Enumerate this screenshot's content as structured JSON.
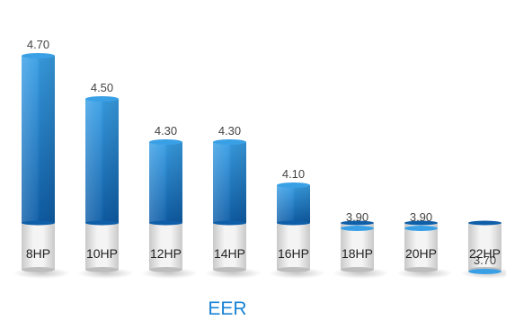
{
  "chart_data": {
    "type": "bar",
    "title": "EER",
    "categories": [
      "8HP",
      "10HP",
      "12HP",
      "14HP",
      "16HP",
      "18HP",
      "20HP",
      "22HP"
    ],
    "values": [
      4.7,
      4.5,
      4.3,
      4.3,
      4.1,
      3.9,
      3.9,
      3.7
    ],
    "value_labels": [
      "4.70",
      "4.50",
      "4.30",
      "4.30",
      "4.10",
      "3.90",
      "3.90",
      "3.70"
    ],
    "xlabel": "",
    "ylabel": "",
    "grid": false,
    "legend": "none",
    "colors": {
      "bar_top": "#3aa0e6",
      "bar_bottom": "#0f5ea8",
      "base_light": "#f4f4f4",
      "base_dark": "#c9c9c9",
      "title": "#1a84d6"
    }
  }
}
